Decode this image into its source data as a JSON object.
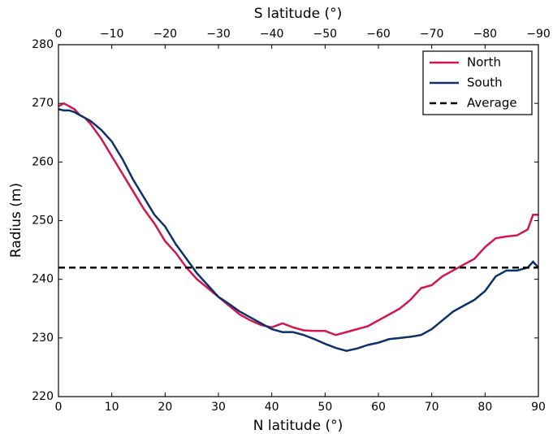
{
  "chart_data": {
    "type": "line",
    "xlabel": "N latitude (°)",
    "x2label": "S latitude (°)",
    "ylabel": "Radius (m)",
    "xlim": [
      0,
      90
    ],
    "xticks": [
      0,
      10,
      20,
      30,
      40,
      50,
      60,
      70,
      80,
      90
    ],
    "x2lim": [
      0,
      -90
    ],
    "x2ticks": [
      0,
      {
        "value": -10,
        "label": "−10"
      },
      {
        "value": -20,
        "label": "−20"
      },
      {
        "value": -30,
        "label": "−30"
      },
      {
        "value": -40,
        "label": "−40"
      },
      {
        "value": -50,
        "label": "−50"
      },
      {
        "value": -60,
        "label": "−60"
      },
      {
        "value": -70,
        "label": "−70"
      },
      {
        "value": -80,
        "label": "−80"
      },
      {
        "value": -90,
        "label": "−90"
      }
    ],
    "ylim": [
      220,
      280
    ],
    "yticks": [
      220,
      230,
      240,
      250,
      260,
      270,
      280
    ],
    "legend": "upper right",
    "x": [
      0,
      1,
      2,
      3,
      4,
      5,
      6,
      8,
      10,
      12,
      14,
      16,
      18,
      20,
      22,
      24,
      26,
      28,
      30,
      32,
      34,
      36,
      38,
      40,
      42,
      44,
      46,
      48,
      50,
      52,
      54,
      56,
      58,
      60,
      62,
      64,
      66,
      68,
      70,
      72,
      74,
      76,
      78,
      80,
      82,
      84,
      86,
      88,
      89,
      90
    ],
    "series": [
      {
        "name": "North",
        "color": "#d0174f",
        "style": "solid",
        "values": [
          269.5,
          270,
          269.5,
          269,
          268,
          267.5,
          266.5,
          264,
          261,
          258,
          255,
          252,
          249.5,
          246.5,
          244.5,
          242,
          240,
          238.5,
          237,
          235.5,
          234,
          233,
          232.2,
          231.8,
          232.5,
          231.8,
          231.3,
          231.2,
          231.2,
          230.5,
          231,
          231.5,
          232,
          233,
          234,
          235,
          236.5,
          238.5,
          239,
          240.5,
          241.5,
          242.5,
          243.5,
          245.5,
          247,
          247.3,
          247.5,
          248.5,
          251,
          251
        ]
      },
      {
        "name": "South",
        "color": "#0d2f6e",
        "style": "solid",
        "values": [
          269,
          268.8,
          268.8,
          268.5,
          268,
          267.5,
          267,
          265.5,
          263.5,
          260.5,
          257,
          254,
          251,
          249,
          246,
          243.5,
          241,
          239,
          237,
          235.8,
          234.5,
          233.5,
          232.5,
          231.5,
          231,
          231,
          230.5,
          229.8,
          229,
          228.3,
          227.8,
          228.2,
          228.8,
          229.2,
          229.8,
          230,
          230.2,
          230.5,
          231.5,
          233,
          234.5,
          235.5,
          236.5,
          238,
          240.5,
          241.5,
          241.5,
          242,
          243,
          242
        ]
      },
      {
        "name": "Average",
        "color": "#000000",
        "style": "dashed",
        "x": [
          0,
          90
        ],
        "values": [
          242,
          242
        ]
      }
    ]
  }
}
